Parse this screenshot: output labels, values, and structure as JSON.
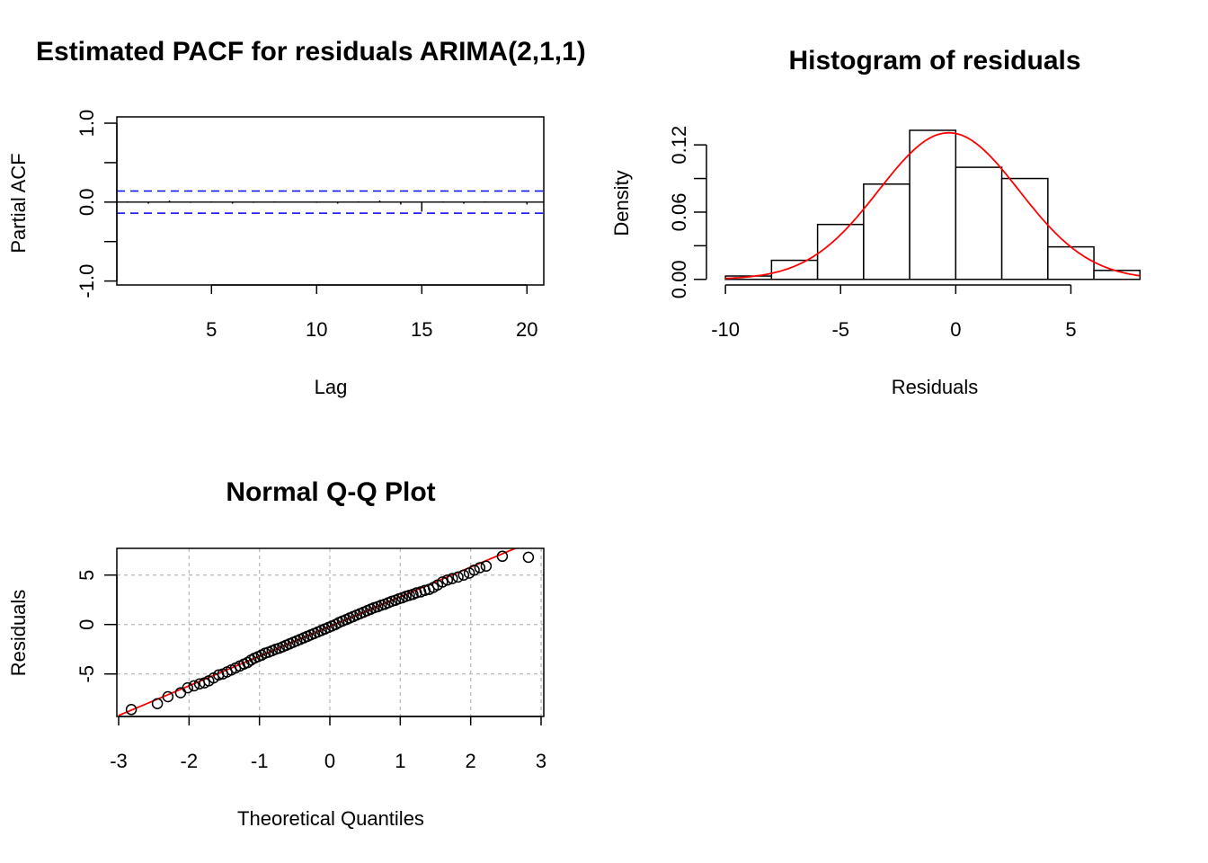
{
  "colors": {
    "axis": "#000000",
    "ci_line": "#0000ff",
    "fit_curve": "#ff0000",
    "qq_line": "#ff0000",
    "grid": "#bdbdbd",
    "bar_fill": "#ffffff",
    "bar_stroke": "#000000",
    "points": "#000000",
    "background": "#ffffff"
  },
  "chart_data": [
    {
      "id": "pacf",
      "type": "bar",
      "title": "Estimated PACF for residuals ARIMA(2,1,1)",
      "xlabel": "Lag",
      "ylabel": "Partial ACF",
      "xlim": [
        0.5,
        20.8
      ],
      "ylim": [
        -1.05,
        1.08
      ],
      "xticks": [
        5,
        10,
        15,
        20
      ],
      "xtick_labels": [
        "5",
        "10",
        "15",
        "20"
      ],
      "yticks": [
        -1.0,
        0.0,
        1.0
      ],
      "ytick_labels": [
        "-1.0",
        "0.0",
        "1.0"
      ],
      "yticks_minor": [
        -0.5,
        0.5
      ],
      "lags": [
        1,
        2,
        3,
        4,
        5,
        6,
        7,
        8,
        9,
        10,
        11,
        12,
        13,
        14,
        15,
        16,
        17,
        18,
        19,
        20
      ],
      "values": [
        0.01,
        -0.02,
        0.02,
        -0.01,
        0.01,
        -0.02,
        -0.01,
        0.01,
        0.0,
        -0.01,
        -0.02,
        0.01,
        0.02,
        -0.03,
        -0.12,
        0.01,
        -0.02,
        0.01,
        0.0,
        -0.03
      ],
      "ci": 0.14,
      "grid": false
    },
    {
      "id": "histogram",
      "type": "bar",
      "title": "Histogram of residuals",
      "xlabel": "Residuals",
      "ylabel": "Density",
      "xlim": [
        -10.2,
        8.3
      ],
      "ylim": [
        -0.005,
        0.145
      ],
      "xticks": [
        -10,
        -5,
        0,
        5
      ],
      "xtick_labels": [
        "-10",
        "-5",
        "0",
        "5"
      ],
      "yticks": [
        0.0,
        0.06,
        0.12
      ],
      "ytick_labels": [
        "0.00",
        "0.06",
        "0.12"
      ],
      "yticks_minor": [
        0.03,
        0.09
      ],
      "bins": [
        {
          "x0": -10,
          "x1": -8,
          "density": 0.003
        },
        {
          "x0": -8,
          "x1": -6,
          "density": 0.017
        },
        {
          "x0": -6,
          "x1": -4,
          "density": 0.049
        },
        {
          "x0": -4,
          "x1": -2,
          "density": 0.085
        },
        {
          "x0": -2,
          "x1": 0,
          "density": 0.133
        },
        {
          "x0": 0,
          "x1": 2,
          "density": 0.1
        },
        {
          "x0": 2,
          "x1": 4,
          "density": 0.09
        },
        {
          "x0": 4,
          "x1": 6,
          "density": 0.029
        },
        {
          "x0": 6,
          "x1": 8,
          "density": 0.008
        }
      ],
      "normal_fit": {
        "mean": -0.3,
        "sd": 3.05
      },
      "grid": false
    },
    {
      "id": "qqplot",
      "type": "scatter",
      "title": "Normal Q-Q Plot",
      "xlabel": "Theoretical Quantiles",
      "ylabel": "Residuals",
      "xlim": [
        -3,
        3
      ],
      "ylim": [
        -9.3,
        7.7
      ],
      "xticks": [
        -3,
        -2,
        -1,
        0,
        1,
        2,
        3
      ],
      "xtick_labels": [
        "-3",
        "-2",
        "-1",
        "0",
        "1",
        "2",
        "3"
      ],
      "yticks": [
        -5,
        0,
        5
      ],
      "ytick_labels": [
        "-5",
        "0",
        "5"
      ],
      "x_grid": [
        -2,
        -1,
        0,
        1,
        2,
        3
      ],
      "y_grid": [
        -5,
        0,
        5
      ],
      "line": {
        "intercept": -0.2,
        "slope": 3.0
      },
      "points": [
        [
          -2.82,
          -8.6
        ],
        [
          -2.45,
          -8.0
        ],
        [
          -2.3,
          -7.3
        ],
        [
          -2.12,
          -6.9
        ],
        [
          -2.02,
          -6.4
        ],
        [
          -1.93,
          -6.2
        ],
        [
          -1.85,
          -6.0
        ],
        [
          -1.78,
          -5.9
        ],
        [
          -1.72,
          -5.7
        ],
        [
          -1.65,
          -5.4
        ],
        [
          -1.58,
          -5.1
        ],
        [
          -1.52,
          -5.0
        ],
        [
          -1.46,
          -4.8
        ],
        [
          -1.4,
          -4.6
        ],
        [
          -1.34,
          -4.4
        ],
        [
          -1.28,
          -4.2
        ],
        [
          -1.22,
          -4.0
        ],
        [
          -1.17,
          -3.85
        ],
        [
          -1.12,
          -3.6
        ],
        [
          -1.07,
          -3.4
        ],
        [
          -1.02,
          -3.25
        ],
        [
          -0.97,
          -3.1
        ],
        [
          -0.92,
          -2.9
        ],
        [
          -0.87,
          -2.8
        ],
        [
          -0.82,
          -2.65
        ],
        [
          -0.77,
          -2.5
        ],
        [
          -0.72,
          -2.4
        ],
        [
          -0.67,
          -2.25
        ],
        [
          -0.62,
          -2.1
        ],
        [
          -0.57,
          -1.95
        ],
        [
          -0.52,
          -1.8
        ],
        [
          -0.47,
          -1.65
        ],
        [
          -0.42,
          -1.5
        ],
        [
          -0.37,
          -1.35
        ],
        [
          -0.32,
          -1.2
        ],
        [
          -0.27,
          -1.05
        ],
        [
          -0.22,
          -0.9
        ],
        [
          -0.17,
          -0.75
        ],
        [
          -0.12,
          -0.6
        ],
        [
          -0.07,
          -0.45
        ],
        [
          -0.02,
          -0.3
        ],
        [
          0.03,
          -0.15
        ],
        [
          0.08,
          0.0
        ],
        [
          0.13,
          0.2
        ],
        [
          0.18,
          0.35
        ],
        [
          0.23,
          0.5
        ],
        [
          0.28,
          0.65
        ],
        [
          0.33,
          0.8
        ],
        [
          0.38,
          0.95
        ],
        [
          0.43,
          1.1
        ],
        [
          0.48,
          1.25
        ],
        [
          0.53,
          1.4
        ],
        [
          0.58,
          1.55
        ],
        [
          0.63,
          1.7
        ],
        [
          0.68,
          1.8
        ],
        [
          0.73,
          1.95
        ],
        [
          0.78,
          2.05
        ],
        [
          0.83,
          2.2
        ],
        [
          0.88,
          2.35
        ],
        [
          0.93,
          2.45
        ],
        [
          0.98,
          2.6
        ],
        [
          1.03,
          2.7
        ],
        [
          1.08,
          2.85
        ],
        [
          1.13,
          2.95
        ],
        [
          1.18,
          3.05
        ],
        [
          1.23,
          3.2
        ],
        [
          1.29,
          3.3
        ],
        [
          1.35,
          3.45
        ],
        [
          1.41,
          3.55
        ],
        [
          1.47,
          3.75
        ],
        [
          1.53,
          4.0
        ],
        [
          1.6,
          4.3
        ],
        [
          1.67,
          4.5
        ],
        [
          1.74,
          4.65
        ],
        [
          1.82,
          4.8
        ],
        [
          1.9,
          5.0
        ],
        [
          1.98,
          5.2
        ],
        [
          2.05,
          5.5
        ],
        [
          2.13,
          5.75
        ],
        [
          2.22,
          5.9
        ],
        [
          2.45,
          6.9
        ],
        [
          2.82,
          6.8
        ]
      ],
      "grid": true
    }
  ]
}
